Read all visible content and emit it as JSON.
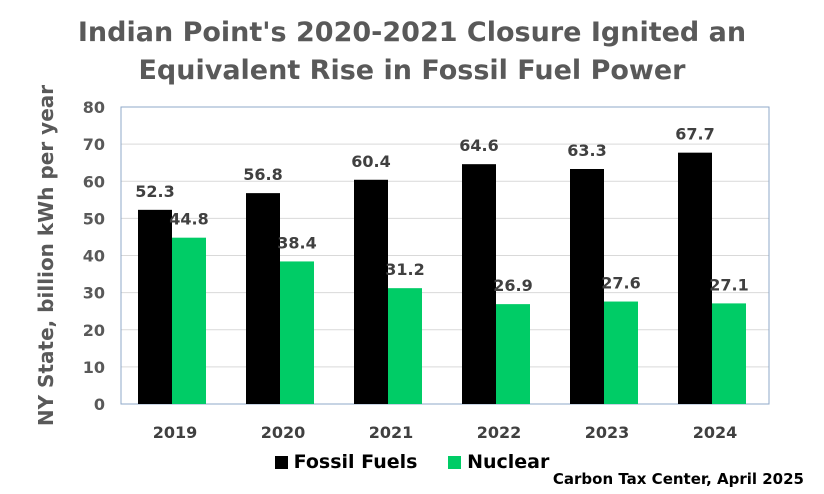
{
  "chart_data": {
    "type": "bar",
    "title_line1": "Indian Point's 2020-2021 Closure Ignited an",
    "title_line2": "Equivalent Rise in Fossil Fuel Power",
    "ylabel": "NY State, billion kWh per year",
    "xlabel": "",
    "categories": [
      "2019",
      "2020",
      "2021",
      "2022",
      "2023",
      "2024"
    ],
    "ylim": [
      0,
      80
    ],
    "yticks": [
      0,
      10,
      20,
      30,
      40,
      50,
      60,
      70,
      80
    ],
    "grid": true,
    "legend_position": "bottom",
    "series": [
      {
        "name": "Fossil Fuels",
        "color": "#000000",
        "values": [
          52.3,
          56.8,
          60.4,
          64.6,
          63.3,
          67.7
        ],
        "labels": [
          "52.3",
          "56.8",
          "60.4",
          "64.6",
          "63.3",
          "67.7"
        ]
      },
      {
        "name": "Nuclear",
        "color": "#00cc66",
        "values": [
          44.8,
          38.4,
          31.2,
          26.9,
          27.6,
          27.1
        ],
        "labels": [
          "44.8",
          "38.4",
          "31.2",
          "26.9",
          "27.6",
          "27.1"
        ]
      }
    ],
    "source": "Carbon Tax Center, April 2025"
  }
}
